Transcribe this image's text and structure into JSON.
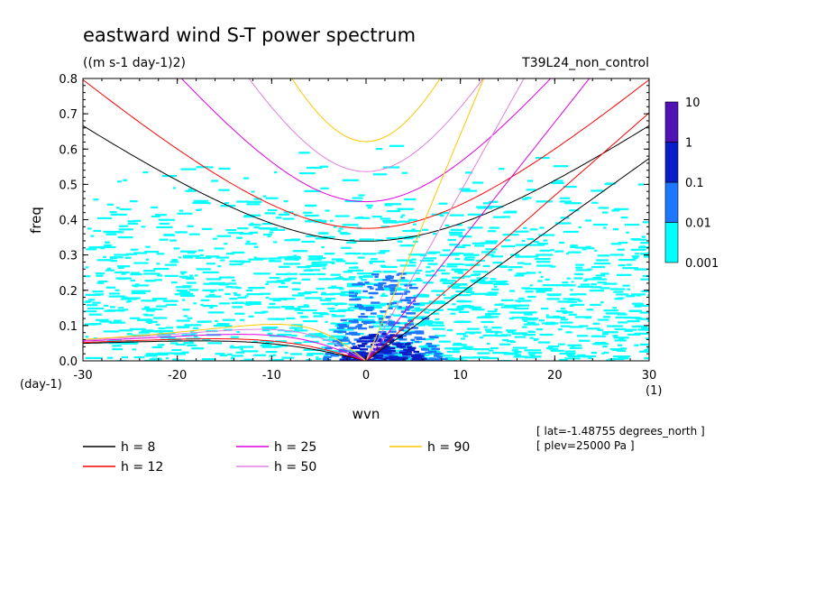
{
  "chart_data": {
    "type": "heatmap",
    "title": "eastward wind S-T power spectrum",
    "subtitle": "((m s-1 day-1)2)",
    "run_label": "T39L24_non_control",
    "xlabel": "wvn",
    "ylabel": "freq",
    "x_units": "(1)",
    "y_units": "(day-1)",
    "xlim": [
      -30,
      30
    ],
    "ylim": [
      0,
      0.8
    ],
    "x_ticks": [
      -30,
      -20,
      -10,
      0,
      10,
      20,
      30
    ],
    "x_tick_labels": [
      "-30",
      "-20",
      "-10",
      "0",
      "10",
      "20",
      "30"
    ],
    "y_ticks": [
      0,
      0.1,
      0.2,
      0.3,
      0.4,
      0.5,
      0.6,
      0.7,
      0.8
    ],
    "y_tick_labels": [
      "0.0",
      "0.1",
      "0.2",
      "0.3",
      "0.4",
      "0.5",
      "0.6",
      "0.7",
      "0.8"
    ],
    "colorbar": {
      "levels": [
        0.001,
        0.01,
        0.1,
        1,
        10
      ],
      "labels": [
        "0.001",
        "0.01",
        "0.1",
        "1",
        "10"
      ],
      "colors": [
        "#00ffff",
        "#1e78ff",
        "#0a1ec8",
        "#5014b4"
      ]
    },
    "power_regions": [
      {
        "level": "0.001-0.01",
        "description": "broad scattered background",
        "color": "#00ffff"
      },
      {
        "level": "0.01-0.1",
        "x_range": [
          -5,
          8
        ],
        "freq_range": [
          0,
          0.25
        ],
        "color": "#1e78ff"
      },
      {
        "level": "0.1-1",
        "x_range": [
          -3,
          6
        ],
        "freq_range": [
          0,
          0.08
        ],
        "color": "#0a1ec8"
      }
    ],
    "dispersion_curves": [
      {
        "h": 8,
        "color": "#000000"
      },
      {
        "h": 12,
        "color": "#ff0000"
      },
      {
        "h": 25,
        "color": "#e000e0"
      },
      {
        "h": 50,
        "color": "#e080e0"
      },
      {
        "h": 90,
        "color": "#ffc800"
      }
    ],
    "legend": [
      "h =  8",
      "h = 12",
      "h = 25",
      "h = 50",
      "h = 90"
    ],
    "legend_position": "bottom",
    "annotations": [
      "[ lat=-1.48755 degrees_north ]",
      "[ plev=25000 Pa ]"
    ]
  }
}
